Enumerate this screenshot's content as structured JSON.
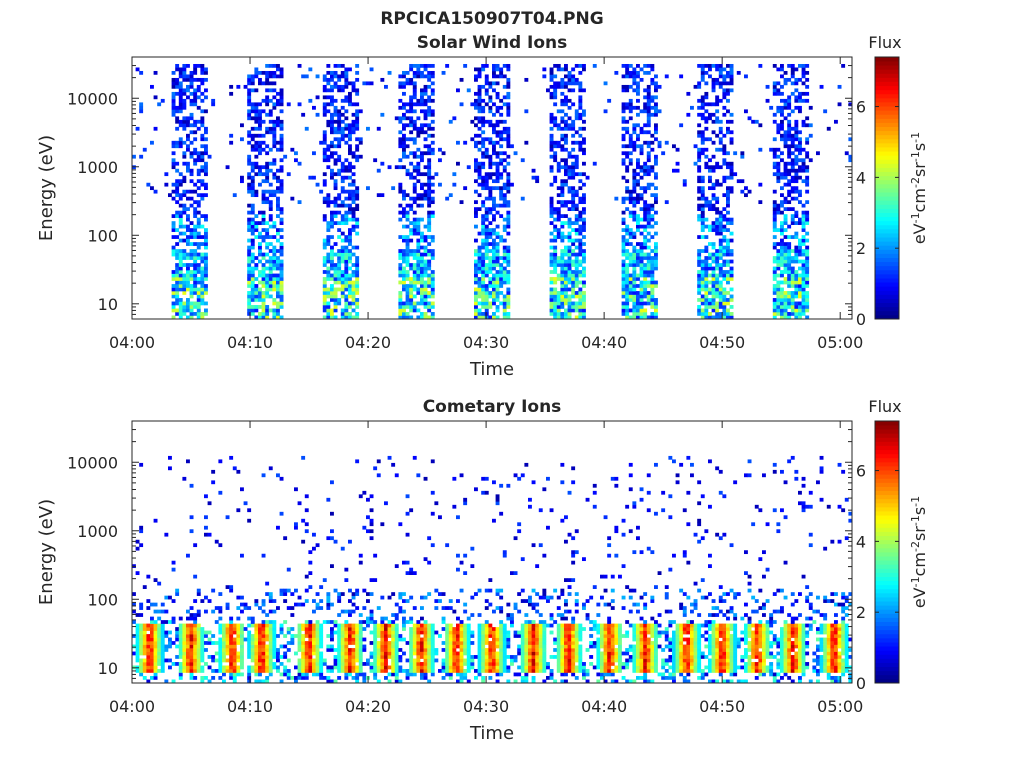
{
  "figure_title": "RPCICA150907T04.PNG",
  "colormap": "jet",
  "chart_data": [
    {
      "type": "heatmap",
      "title": "Solar Wind Ions",
      "xlabel": "Time",
      "ylabel": "Energy (eV)",
      "x_tick_labels": [
        "04:00",
        "04:10",
        "04:20",
        "04:30",
        "04:40",
        "04:50",
        "05:00"
      ],
      "xlim": [
        "04:00",
        "05:01"
      ],
      "y_scale": "log",
      "y_tick_values": [
        10,
        100,
        1000,
        10000
      ],
      "y_tick_labels": [
        "10",
        "100",
        "1000",
        "10000"
      ],
      "ylim": [
        6,
        40000
      ],
      "colorbar": {
        "label": "Flux",
        "unit_label": "eV-1cm-2sr-1s-1",
        "range": [
          0,
          7.4
        ],
        "tick_values": [
          0,
          2,
          4,
          6
        ],
        "tick_labels": [
          "0",
          "2",
          "4",
          "6"
        ]
      },
      "bursts_start_minutes": [
        3.4,
        9.8,
        16.1,
        22.5,
        28.9,
        35.3,
        41.6,
        48.0,
        54.3
      ],
      "burst_duration_minutes": 3.0,
      "low_energy_peak_flux": 4.5,
      "high_energy_flux_range": [
        0.3,
        1.8
      ]
    },
    {
      "type": "heatmap",
      "title": "Cometary Ions",
      "xlabel": "Time",
      "ylabel": "Energy (eV)",
      "x_tick_labels": [
        "04:00",
        "04:10",
        "04:20",
        "04:30",
        "04:40",
        "04:50",
        "05:00"
      ],
      "xlim": [
        "04:00",
        "05:01"
      ],
      "y_scale": "log",
      "y_tick_values": [
        10,
        100,
        1000,
        10000
      ],
      "y_tick_labels": [
        "10",
        "100",
        "1000",
        "10000"
      ],
      "ylim": [
        6,
        40000
      ],
      "colorbar": {
        "label": "Flux",
        "unit_label": "eV-1cm-2sr-1s-1",
        "range": [
          0,
          7.4
        ],
        "tick_values": [
          0,
          2,
          4,
          6
        ],
        "tick_labels": [
          "0",
          "2",
          "4",
          "6"
        ]
      },
      "hot_spot_minutes": [
        1.5,
        5.0,
        8.5,
        11.0,
        15.0,
        18.5,
        21.5,
        24.5,
        27.5,
        30.5,
        34.0,
        37.0,
        40.5,
        43.5,
        47.0,
        50.0,
        53.0,
        56.0,
        59.5
      ],
      "hot_spot_energy_range_eV": [
        10,
        40
      ],
      "hot_spot_peak_flux": 7.2,
      "background_flux_range": [
        0.3,
        2.0
      ]
    }
  ]
}
